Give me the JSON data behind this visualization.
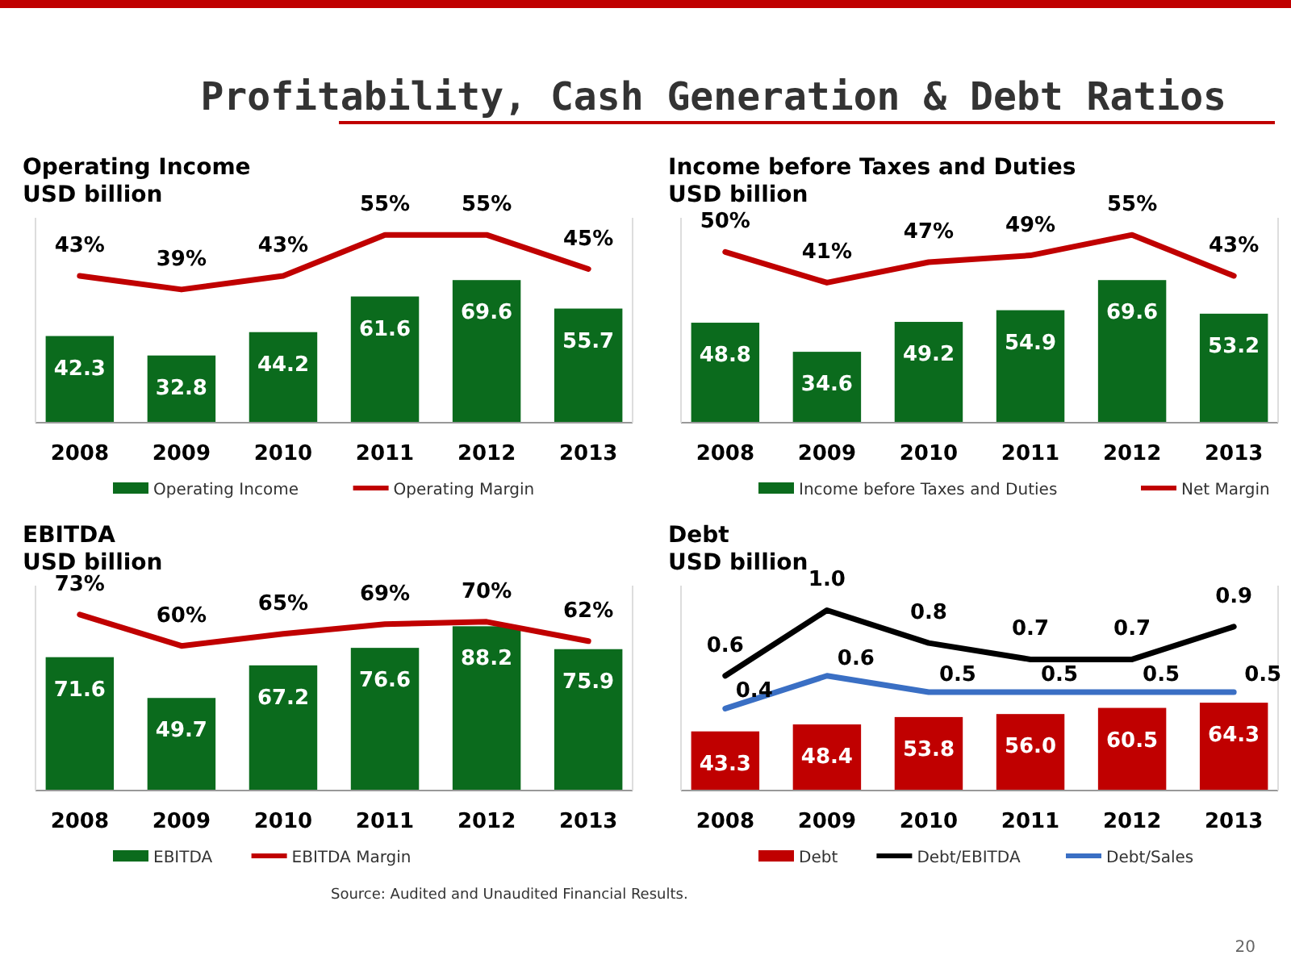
{
  "chart_data": [
    {
      "type": "bar",
      "title": "Operating Income",
      "subtitle": "USD billion",
      "categories": [
        "2008",
        "2009",
        "2010",
        "2011",
        "2012",
        "2013"
      ],
      "ylim": [
        0,
        100
      ],
      "y2lim": [
        0,
        60
      ],
      "tick_labels": "x",
      "legend": "bottom",
      "annotations": [
        "Profitability, Cash Generation & Debt Ratios"
      ],
      "series": [
        {
          "name": "Operating Income",
          "color": "#0b6b1d",
          "values": [
            42.3,
            32.8,
            44.2,
            61.6,
            69.6,
            55.7
          ],
          "value_labels": [
            "42.3",
            "32.8",
            "44.2",
            "61.6",
            "69.6",
            "55.7"
          ]
        },
        {
          "name": "Operating Margin",
          "type": "line",
          "axis": "y2",
          "color": "#c00000",
          "values": [
            43,
            39,
            43,
            55,
            55,
            45
          ],
          "value_labels": [
            "43%",
            "39%",
            "43%",
            "55%",
            "55%",
            "45%"
          ]
        }
      ]
    },
    {
      "type": "bar",
      "title": "Income before Taxes and Duties",
      "subtitle": "USD billion",
      "categories": [
        "2008",
        "2009",
        "2010",
        "2011",
        "2012",
        "2013"
      ],
      "ylim": [
        0,
        100
      ],
      "y2lim": [
        0,
        60
      ],
      "tick_labels": "x",
      "legend": "bottom",
      "series": [
        {
          "name": "Income before Taxes and Duties",
          "color": "#0b6b1d",
          "values": [
            48.8,
            34.6,
            49.2,
            54.9,
            69.6,
            53.2
          ],
          "value_labels": [
            "48.8",
            "34.6",
            "49.2",
            "54.9",
            "69.6",
            "53.2"
          ]
        },
        {
          "name": "Net Margin",
          "type": "line",
          "axis": "y2",
          "color": "#c00000",
          "values": [
            50,
            41,
            47,
            49,
            55,
            43
          ],
          "value_labels": [
            "50%",
            "41%",
            "47%",
            "49%",
            "55%",
            "43%"
          ]
        }
      ]
    },
    {
      "type": "bar",
      "title": "EBITDA",
      "subtitle": "USD billion",
      "categories": [
        "2008",
        "2009",
        "2010",
        "2011",
        "2012",
        "2013"
      ],
      "ylim": [
        0,
        110
      ],
      "y2lim": [
        0,
        85
      ],
      "tick_labels": "x",
      "legend": "bottom",
      "series": [
        {
          "name": "EBITDA",
          "color": "#0b6b1d",
          "values": [
            71.6,
            49.7,
            67.2,
            76.6,
            88.2,
            75.9
          ],
          "value_labels": [
            "71.6",
            "49.7",
            "67.2",
            "76.6",
            "88.2",
            "75.9"
          ]
        },
        {
          "name": "EBITDA Margin",
          "type": "line",
          "axis": "y2",
          "color": "#c00000",
          "values": [
            73,
            60,
            65,
            69,
            70,
            62
          ],
          "value_labels": [
            "73%",
            "60%",
            "65%",
            "69%",
            "70%",
            "62%"
          ]
        }
      ]
    },
    {
      "type": "bar",
      "title": "Debt",
      "subtitle": "USD billion",
      "categories": [
        "2008",
        "2009",
        "2010",
        "2011",
        "2012",
        "2013"
      ],
      "ylim": [
        0,
        150
      ],
      "y2lim": [
        -0.1,
        1.15
      ],
      "tick_labels": "x",
      "legend": "bottom",
      "annotations": [
        "Source: Audited and Unaudited Financial Results.",
        "20"
      ],
      "series": [
        {
          "name": "Debt",
          "color": "#c00000",
          "values": [
            43.3,
            48.4,
            53.8,
            56.0,
            60.5,
            64.3
          ],
          "value_labels": [
            "43.3",
            "48.4",
            "53.8",
            "56.0",
            "60.5",
            "64.3"
          ]
        },
        {
          "name": "Debt/EBITDA",
          "type": "line",
          "axis": "y2",
          "color": "#000000",
          "values": [
            0.6,
            1.0,
            0.8,
            0.7,
            0.7,
            0.9
          ],
          "value_labels": [
            "0.6",
            "1.0",
            "0.8",
            "0.7",
            "0.7",
            "0.9"
          ]
        },
        {
          "name": "Debt/Sales",
          "type": "line",
          "axis": "y2",
          "color": "#3a6fc4",
          "values": [
            0.4,
            0.6,
            0.5,
            0.5,
            0.5,
            0.5
          ],
          "value_labels": [
            "0.4",
            "0.6",
            "0.5",
            "0.5",
            "0.5",
            "0.5"
          ]
        }
      ]
    }
  ]
}
